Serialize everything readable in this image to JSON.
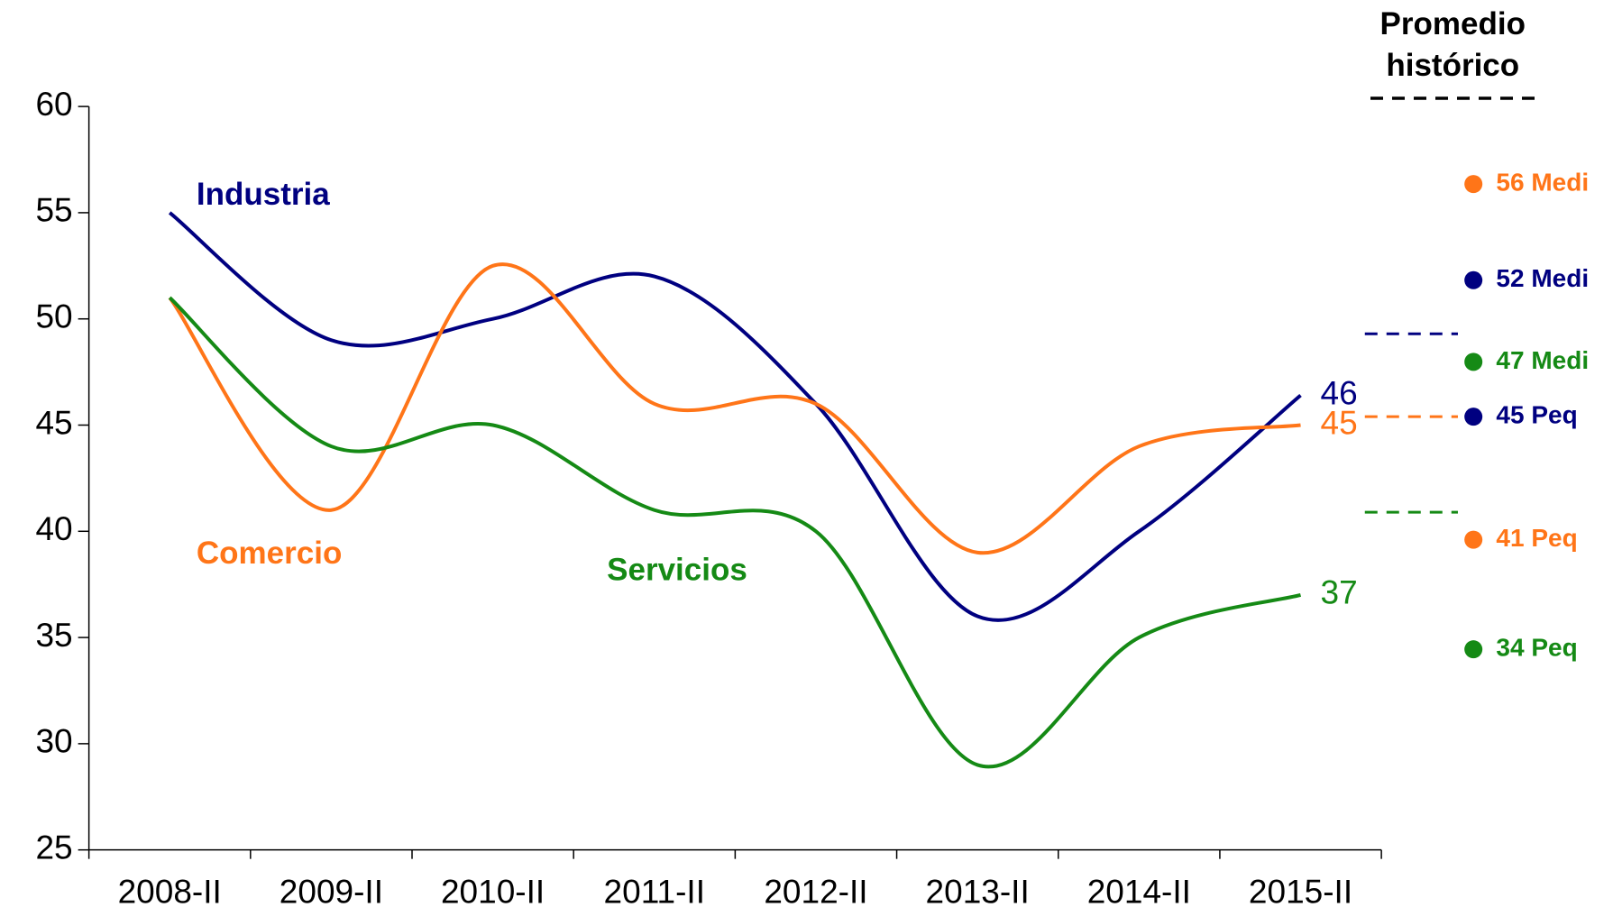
{
  "chart_data": {
    "type": "line",
    "categories": [
      "2008-II",
      "2009-II",
      "2010-II",
      "2011-II",
      "2012-II",
      "2013-II",
      "2014-II",
      "2015-II"
    ],
    "ylim": [
      25,
      60
    ],
    "yticks": [
      25,
      30,
      35,
      40,
      45,
      50,
      55,
      60
    ],
    "series": [
      {
        "name": "Industria",
        "color": "#000080",
        "values": [
          55,
          49,
          50,
          52,
          46,
          36,
          40,
          46.4
        ],
        "end_label": "46",
        "historical_average": 49.3
      },
      {
        "name": "Comercio",
        "color": "#ff7518",
        "values": [
          51,
          41,
          52.5,
          46,
          46,
          39,
          44,
          45
        ],
        "end_label": "45",
        "historical_average": 45.4
      },
      {
        "name": "Servicios",
        "color": "#158a15",
        "values": [
          51,
          44,
          45,
          41,
          40,
          29,
          35,
          37
        ],
        "end_label": "37",
        "historical_average": 40.9
      }
    ],
    "side_title": [
      "Promedio",
      "histórico"
    ],
    "annotations": [
      {
        "text": "56 Medi",
        "color": "#ff7518"
      },
      {
        "text": "52 Medi",
        "color": "#000080"
      },
      {
        "text": "47 Medi",
        "color": "#158a15"
      },
      {
        "text": "45 Peq",
        "color": "#000080"
      },
      {
        "text": "41 Peq",
        "color": "#ff7518"
      },
      {
        "text": "34 Peq",
        "color": "#158a15"
      }
    ]
  }
}
